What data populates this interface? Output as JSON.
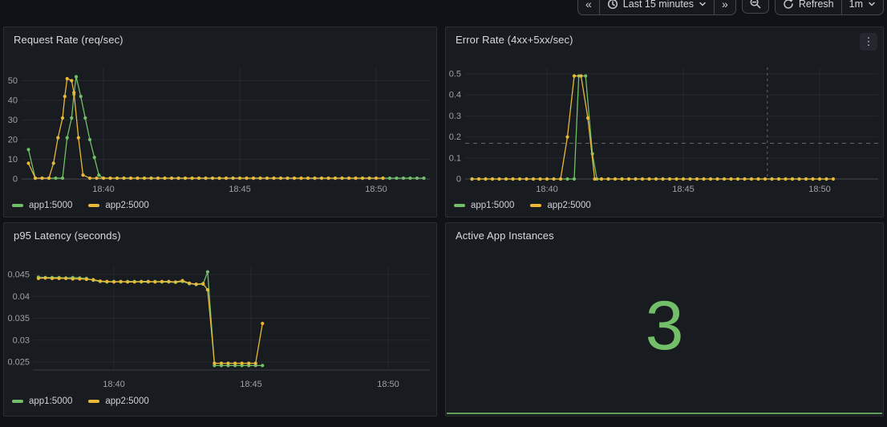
{
  "toolbar": {
    "prev_label": "«",
    "time_range": "Last 15 minutes",
    "next_label": "»",
    "refresh_label": "Refresh",
    "interval": "1m"
  },
  "colors": {
    "green": "#73bf69",
    "yellow": "#eab839"
  },
  "chart_data": [
    {
      "type": "line",
      "panel": "request-rate",
      "title": "Request Rate (req/sec)",
      "y_ticks": [
        "0",
        "10",
        "20",
        "30",
        "40",
        "50"
      ],
      "ylim": [
        0,
        55
      ],
      "x_ticks": [
        "18:40",
        "18:45",
        "18:50"
      ],
      "x_range": [
        "18:37:15",
        "18:51:45"
      ],
      "legend_position": "bottom",
      "grid": true,
      "series": [
        {
          "name": "app1:5000",
          "color": "green",
          "points": [
            [
              "18:37:15",
              15
            ],
            [
              "18:37:30",
              0.4
            ],
            {
              "from": "18:37:45",
              "to": "18:38:30",
              "step_sec": 15,
              "value": 0.4
            },
            [
              "18:38:40",
              21
            ],
            [
              "18:38:50",
              31
            ],
            [
              "18:38:55",
              43
            ],
            [
              "18:39:00",
              52
            ],
            [
              "18:39:10",
              42
            ],
            [
              "18:39:20",
              31
            ],
            [
              "18:39:30",
              20
            ],
            [
              "18:39:40",
              11
            ],
            [
              "18:39:50",
              2
            ],
            [
              "18:40:00",
              0.4
            ],
            {
              "from": "18:40:15",
              "to": "18:51:45",
              "step_sec": 15,
              "value": 0.4
            }
          ]
        },
        {
          "name": "app2:5000",
          "color": "yellow",
          "points": [
            [
              "18:37:15",
              8
            ],
            [
              "18:37:30",
              0.4
            ],
            {
              "from": "18:37:45",
              "to": "18:38:00",
              "step_sec": 15,
              "value": 0.4
            },
            [
              "18:38:10",
              8
            ],
            [
              "18:38:20",
              21
            ],
            [
              "18:38:30",
              31
            ],
            [
              "18:38:35",
              42
            ],
            [
              "18:38:40",
              51
            ],
            [
              "18:38:50",
              50
            ],
            [
              "18:38:55",
              44
            ],
            [
              "18:39:05",
              21
            ],
            [
              "18:39:15",
              2
            ],
            [
              "18:39:30",
              0.4
            ],
            {
              "from": "18:39:45",
              "to": "18:50:15",
              "step_sec": 15,
              "value": 0.4
            }
          ]
        }
      ]
    },
    {
      "type": "line",
      "panel": "error-rate",
      "title": "Error Rate (4xx+5xx/sec)",
      "y_ticks": [
        "0",
        "0.1",
        "0.2",
        "0.3",
        "0.4",
        "0.5"
      ],
      "ylim": [
        0,
        0.52
      ],
      "x_ticks": [
        "18:40",
        "18:45",
        "18:50"
      ],
      "x_range": [
        "18:37:15",
        "18:50:30"
      ],
      "threshold": {
        "value": 0.17,
        "style": "dashed"
      },
      "annotation_vline": "18:48:05",
      "legend_position": "bottom",
      "grid": true,
      "series": [
        {
          "name": "app1:5000",
          "color": "green",
          "points": [
            {
              "from": "18:37:15",
              "to": "18:40:45",
              "step_sec": 15,
              "value": 0
            },
            [
              "18:41:00",
              0
            ],
            [
              "18:41:10",
              0.49
            ],
            [
              "18:41:25",
              0.49
            ],
            [
              "18:41:40",
              0.12
            ],
            [
              "18:41:50",
              0
            ],
            {
              "from": "18:42:00",
              "to": "18:50:15",
              "step_sec": 15,
              "value": 0
            }
          ]
        },
        {
          "name": "app2:5000",
          "color": "yellow",
          "points": [
            {
              "from": "18:37:15",
              "to": "18:40:30",
              "step_sec": 15,
              "value": 0
            },
            [
              "18:40:45",
              0.2
            ],
            [
              "18:41:00",
              0.49
            ],
            [
              "18:41:15",
              0.49
            ],
            [
              "18:41:30",
              0.29
            ],
            [
              "18:41:45",
              0
            ],
            {
              "from": "18:42:00",
              "to": "18:50:30",
              "step_sec": 15,
              "value": 0
            }
          ]
        }
      ]
    },
    {
      "type": "line",
      "panel": "latency",
      "title": "p95 Latency (seconds)",
      "y_ticks": [
        "0.025",
        "0.03",
        "0.035",
        "0.04",
        "0.045"
      ],
      "ylim": [
        0.023,
        0.047
      ],
      "x_ticks": [
        "18:40",
        "18:45",
        "18:50"
      ],
      "x_range": [
        "18:37:15",
        "18:45:25"
      ],
      "legend_position": "bottom",
      "grid": true,
      "series": [
        {
          "name": "app1:5000",
          "color": "green",
          "points": [
            [
              "18:37:15",
              0.0444
            ],
            [
              "18:37:30",
              0.0443
            ],
            [
              "18:37:45",
              0.0443
            ],
            [
              "18:38:00",
              0.0443
            ],
            [
              "18:38:15",
              0.0442
            ],
            [
              "18:38:30",
              0.0443
            ],
            [
              "18:38:45",
              0.0442
            ],
            [
              "18:39:00",
              0.0441
            ],
            [
              "18:39:15",
              0.0437
            ],
            [
              "18:39:30",
              0.0434
            ],
            [
              "18:39:45",
              0.0433
            ],
            [
              "18:40:00",
              0.0434
            ],
            [
              "18:40:15",
              0.0433
            ],
            [
              "18:40:30",
              0.0434
            ],
            [
              "18:40:45",
              0.0434
            ],
            [
              "18:41:00",
              0.0433
            ],
            [
              "18:41:15",
              0.0433
            ],
            [
              "18:41:30",
              0.0434
            ],
            [
              "18:41:45",
              0.0433
            ],
            [
              "18:42:00",
              0.0433
            ],
            [
              "18:42:15",
              0.0432
            ],
            [
              "18:42:30",
              0.0434
            ],
            [
              "18:42:45",
              0.0429
            ],
            [
              "18:43:00",
              0.0427
            ],
            [
              "18:43:15",
              0.0428
            ],
            [
              "18:43:25",
              0.0456
            ],
            [
              "18:43:40",
              0.0242
            ],
            {
              "from": "18:43:55",
              "to": "18:45:10",
              "step_sec": 15,
              "value": 0.0242
            },
            [
              "18:45:25",
              0.0242
            ]
          ]
        },
        {
          "name": "app2:5000",
          "color": "yellow",
          "points": [
            [
              "18:37:15",
              0.0441
            ],
            [
              "18:37:30",
              0.0442
            ],
            [
              "18:37:45",
              0.0441
            ],
            [
              "18:38:00",
              0.0441
            ],
            [
              "18:38:15",
              0.0441
            ],
            [
              "18:38:30",
              0.044
            ],
            [
              "18:38:45",
              0.044
            ],
            [
              "18:39:00",
              0.0439
            ],
            [
              "18:39:15",
              0.0438
            ],
            [
              "18:39:30",
              0.0435
            ],
            [
              "18:39:45",
              0.0434
            ],
            [
              "18:40:00",
              0.0433
            ],
            [
              "18:40:15",
              0.0434
            ],
            [
              "18:40:30",
              0.0433
            ],
            [
              "18:40:45",
              0.0433
            ],
            [
              "18:41:00",
              0.0434
            ],
            [
              "18:41:15",
              0.0434
            ],
            [
              "18:41:30",
              0.0433
            ],
            [
              "18:41:45",
              0.0434
            ],
            [
              "18:42:00",
              0.0434
            ],
            [
              "18:42:15",
              0.0433
            ],
            [
              "18:42:30",
              0.0436
            ],
            [
              "18:42:45",
              0.043
            ],
            [
              "18:43:00",
              0.0428
            ],
            [
              "18:43:15",
              0.0429
            ],
            [
              "18:43:25",
              0.0415
            ],
            [
              "18:43:40",
              0.0247
            ],
            {
              "from": "18:43:55",
              "to": "18:45:10",
              "step_sec": 15,
              "value": 0.0247
            },
            [
              "18:45:25",
              0.0338
            ]
          ]
        }
      ]
    },
    {
      "type": "stat",
      "panel": "active-instances",
      "title": "Active App Instances",
      "value": "3",
      "sparkline_value": 3,
      "value_color": "green"
    }
  ]
}
